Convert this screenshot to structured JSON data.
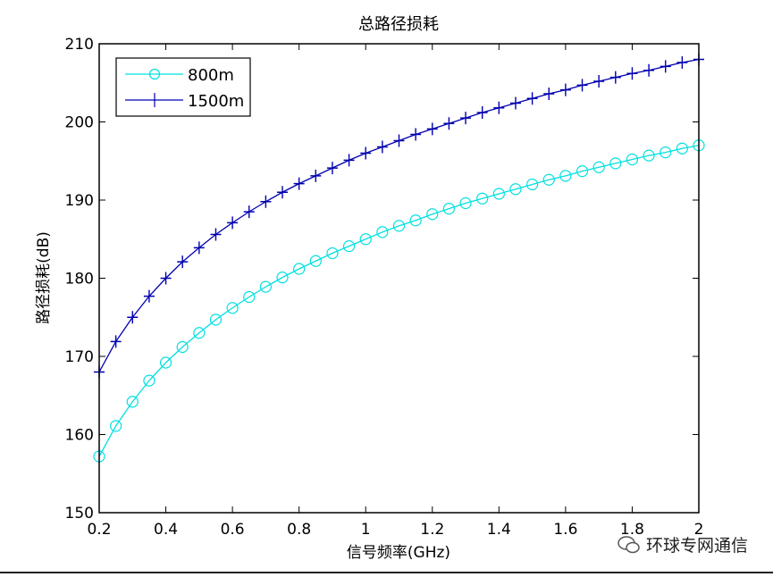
{
  "chart_data": {
    "type": "line",
    "title": "总路径损耗",
    "xlabel": "信号频率(GHz)",
    "ylabel": "路径损耗(dB)",
    "xlim": [
      0.2,
      2
    ],
    "ylim": [
      150,
      210
    ],
    "xticks": [
      0.2,
      0.4,
      0.6,
      0.8,
      1,
      1.2,
      1.4,
      1.6,
      1.8,
      2
    ],
    "xtick_labels": [
      "0.2",
      "0.4",
      "0.6",
      "0.8",
      "1",
      "1.2",
      "1.4",
      "1.6",
      "1.8",
      "2"
    ],
    "yticks": [
      150,
      160,
      170,
      180,
      190,
      200,
      210
    ],
    "ytick_labels": [
      "150",
      "160",
      "170",
      "180",
      "190",
      "200",
      "210"
    ],
    "grid": false,
    "legend_position": "top-left",
    "x": [
      0.2,
      0.25,
      0.3,
      0.35,
      0.4,
      0.45,
      0.5,
      0.55,
      0.6,
      0.65,
      0.7,
      0.75,
      0.8,
      0.85,
      0.9,
      0.95,
      1,
      1.05,
      1.1,
      1.15,
      1.2,
      1.25,
      1.3,
      1.35,
      1.4,
      1.45,
      1.5,
      1.55,
      1.6,
      1.65,
      1.7,
      1.75,
      1.8,
      1.85,
      1.9,
      1.95,
      2
    ],
    "series": [
      {
        "name": "800m",
        "color": "#00e0e0",
        "marker": "circle",
        "values": [
          157.2,
          161.1,
          164.2,
          166.9,
          169.2,
          171.2,
          173.0,
          174.7,
          176.2,
          177.6,
          178.9,
          180.1,
          181.2,
          182.2,
          183.2,
          184.1,
          185.0,
          185.9,
          186.7,
          187.4,
          188.2,
          188.9,
          189.6,
          190.2,
          190.8,
          191.4,
          192.0,
          192.6,
          193.1,
          193.7,
          194.2,
          194.7,
          195.2,
          195.7,
          196.1,
          196.6,
          197.0
        ]
      },
      {
        "name": "1500m",
        "color": "#0000b0",
        "marker": "plus",
        "values": [
          168.0,
          171.9,
          175.0,
          177.7,
          180.0,
          182.1,
          183.9,
          185.6,
          187.1,
          188.5,
          189.8,
          191.0,
          192.1,
          193.1,
          194.1,
          195.1,
          196.0,
          196.8,
          197.6,
          198.4,
          199.1,
          199.8,
          200.5,
          201.2,
          201.8,
          202.4,
          203.0,
          203.6,
          204.1,
          204.7,
          205.2,
          205.7,
          206.2,
          206.6,
          207.1,
          207.6,
          208.0
        ]
      }
    ]
  },
  "watermark": {
    "text": "环球专网通信",
    "icon": "wechat-icon"
  }
}
